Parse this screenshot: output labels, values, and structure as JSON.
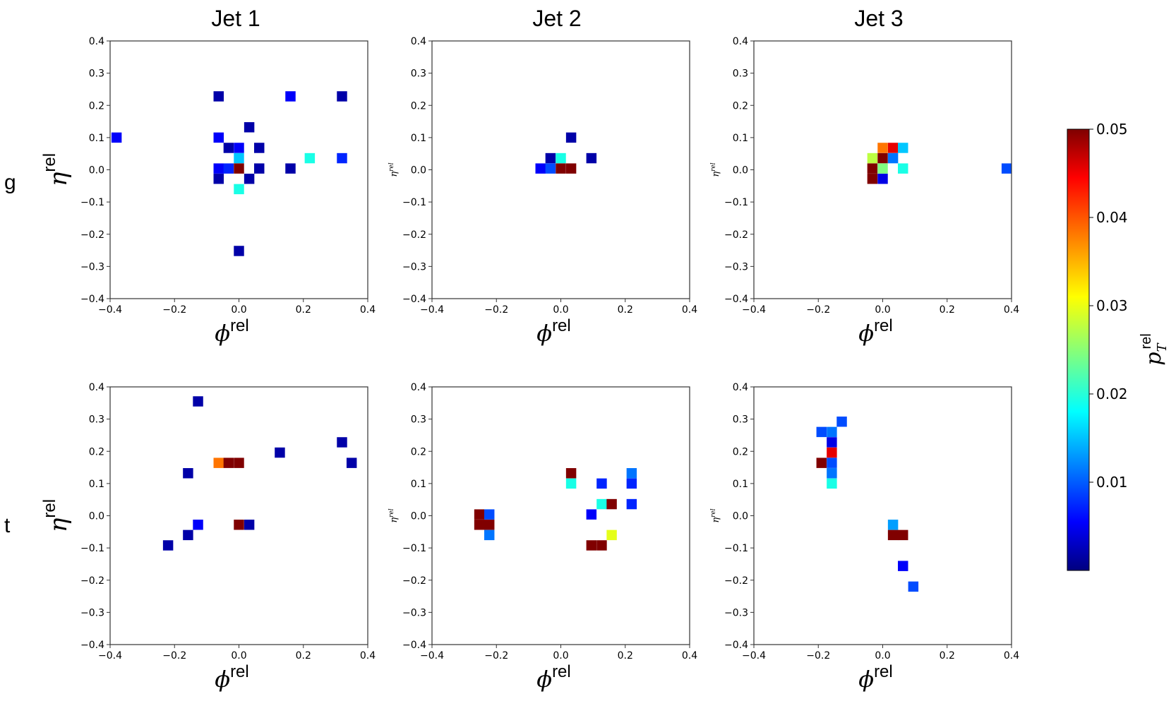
{
  "figure": {
    "column_titles": [
      "Jet 1",
      "Jet 2",
      "Jet 3"
    ],
    "row_labels": [
      "g",
      "t"
    ],
    "colorbar": {
      "label_main": "p",
      "label_sub": "T",
      "label_sup": "rel",
      "min": 0,
      "max": 0.05,
      "ticks": [
        0.01,
        0.02,
        0.03,
        0.04,
        0.05
      ],
      "tick_labels": [
        "0.01",
        "0.02",
        "0.03",
        "0.04",
        "0.05"
      ],
      "colormap": "jet"
    }
  },
  "chart_data": [
    {
      "type": "heatmap",
      "row": "g",
      "column": "Jet 1",
      "xlabel_main": "ϕ",
      "xlabel_sup": "rel",
      "ylabel_main": "η",
      "ylabel_sup": "rel",
      "ylabel_style": "large",
      "xlim": [
        -0.4,
        0.4
      ],
      "ylim": [
        -0.4,
        0.4
      ],
      "cell_size": 0.0317,
      "xticks": [
        -0.4,
        -0.2,
        0.0,
        0.2,
        0.4
      ],
      "xtick_labels": [
        "−0.4",
        "−0.2",
        "0.0",
        "0.2",
        "0.4"
      ],
      "yticks": [
        0.4,
        0.3,
        0.2,
        0.1,
        0.0,
        -0.1,
        -0.2,
        -0.3,
        -0.4
      ],
      "ytick_labels": [
        "0.4",
        "0.3",
        "0.2",
        "0.1",
        "0.0",
        "−0.1",
        "−0.2",
        "−0.3",
        "−0.4"
      ],
      "cells": [
        {
          "phi": -0.38,
          "eta": 0.1,
          "pt": 0.006
        },
        {
          "phi": -0.063,
          "eta": 0.228,
          "pt": 0.002
        },
        {
          "phi": 0.16,
          "eta": 0.228,
          "pt": 0.006
        },
        {
          "phi": 0.32,
          "eta": 0.228,
          "pt": 0.002
        },
        {
          "phi": 0.032,
          "eta": 0.132,
          "pt": 0.002
        },
        {
          "phi": -0.063,
          "eta": 0.1,
          "pt": 0.006
        },
        {
          "phi": -0.032,
          "eta": 0.068,
          "pt": 0.002
        },
        {
          "phi": 0.0,
          "eta": 0.068,
          "pt": 0.006
        },
        {
          "phi": 0.063,
          "eta": 0.068,
          "pt": 0.002
        },
        {
          "phi": 0.0,
          "eta": 0.036,
          "pt": 0.016
        },
        {
          "phi": 0.22,
          "eta": 0.036,
          "pt": 0.02
        },
        {
          "phi": 0.32,
          "eta": 0.036,
          "pt": 0.008
        },
        {
          "phi": -0.063,
          "eta": 0.004,
          "pt": 0.006
        },
        {
          "phi": -0.032,
          "eta": 0.004,
          "pt": 0.008
        },
        {
          "phi": 0.0,
          "eta": 0.004,
          "pt": 0.05
        },
        {
          "phi": 0.063,
          "eta": 0.004,
          "pt": 0.002
        },
        {
          "phi": 0.16,
          "eta": 0.004,
          "pt": 0.002
        },
        {
          "phi": -0.063,
          "eta": -0.028,
          "pt": 0.002
        },
        {
          "phi": 0.032,
          "eta": -0.028,
          "pt": 0.002
        },
        {
          "phi": 0.0,
          "eta": -0.06,
          "pt": 0.02
        },
        {
          "phi": 0.0,
          "eta": -0.252,
          "pt": 0.002
        }
      ]
    },
    {
      "type": "heatmap",
      "row": "g",
      "column": "Jet 2",
      "xlabel_main": "ϕ",
      "xlabel_sup": "rel",
      "ylabel_main": "η",
      "ylabel_sup": "rel",
      "ylabel_style": "small",
      "xlim": [
        -0.4,
        0.4
      ],
      "ylim": [
        -0.4,
        0.4
      ],
      "cell_size": 0.0317,
      "xticks": [
        -0.4,
        -0.2,
        0.0,
        0.2,
        0.4
      ],
      "xtick_labels": [
        "−0.4",
        "−0.2",
        "0.0",
        "0.2",
        "0.4"
      ],
      "yticks": [
        0.4,
        0.3,
        0.2,
        0.1,
        0.0,
        -0.1,
        -0.2,
        -0.3,
        -0.4
      ],
      "ytick_labels": [
        "0.4",
        "0.3",
        "0.2",
        "0.1",
        "0.0",
        "−0.1",
        "−0.2",
        "−0.3",
        "−0.4"
      ],
      "cells": [
        {
          "phi": 0.032,
          "eta": 0.1,
          "pt": 0.002
        },
        {
          "phi": -0.032,
          "eta": 0.036,
          "pt": 0.002
        },
        {
          "phi": 0.0,
          "eta": 0.036,
          "pt": 0.02
        },
        {
          "phi": 0.095,
          "eta": 0.036,
          "pt": 0.002
        },
        {
          "phi": -0.063,
          "eta": 0.004,
          "pt": 0.006
        },
        {
          "phi": -0.032,
          "eta": 0.004,
          "pt": 0.01
        },
        {
          "phi": 0.0,
          "eta": 0.004,
          "pt": 0.05
        },
        {
          "phi": 0.032,
          "eta": 0.004,
          "pt": 0.05
        }
      ]
    },
    {
      "type": "heatmap",
      "row": "g",
      "column": "Jet 3",
      "xlabel_main": "ϕ",
      "xlabel_sup": "rel",
      "ylabel_main": "η",
      "ylabel_sup": "rel",
      "ylabel_style": "small",
      "xlim": [
        -0.4,
        0.4
      ],
      "ylim": [
        -0.4,
        0.4
      ],
      "cell_size": 0.0317,
      "xticks": [
        -0.4,
        -0.2,
        0.0,
        0.2,
        0.4
      ],
      "xtick_labels": [
        "−0.4",
        "−0.2",
        "0.0",
        "0.2",
        "0.4"
      ],
      "yticks": [
        0.4,
        0.3,
        0.2,
        0.1,
        0.0,
        -0.1,
        -0.2,
        -0.3,
        -0.4
      ],
      "ytick_labels": [
        "0.4",
        "0.3",
        "0.2",
        "0.1",
        "0.0",
        "−0.1",
        "−0.2",
        "−0.3",
        "−0.4"
      ],
      "cells": [
        {
          "phi": 0.0,
          "eta": 0.068,
          "pt": 0.038
        },
        {
          "phi": 0.032,
          "eta": 0.068,
          "pt": 0.045
        },
        {
          "phi": 0.063,
          "eta": 0.068,
          "pt": 0.016
        },
        {
          "phi": -0.032,
          "eta": 0.036,
          "pt": 0.028
        },
        {
          "phi": 0.0,
          "eta": 0.036,
          "pt": 0.05
        },
        {
          "phi": 0.032,
          "eta": 0.036,
          "pt": 0.012
        },
        {
          "phi": -0.032,
          "eta": 0.004,
          "pt": 0.05
        },
        {
          "phi": 0.0,
          "eta": 0.004,
          "pt": 0.025
        },
        {
          "phi": 0.063,
          "eta": 0.004,
          "pt": 0.02
        },
        {
          "phi": 0.385,
          "eta": 0.004,
          "pt": 0.01
        },
        {
          "phi": -0.032,
          "eta": -0.028,
          "pt": 0.05
        },
        {
          "phi": 0.0,
          "eta": -0.028,
          "pt": 0.005
        }
      ]
    },
    {
      "type": "heatmap",
      "row": "t",
      "column": "Jet 1",
      "xlabel_main": "ϕ",
      "xlabel_sup": "rel",
      "ylabel_main": "η",
      "ylabel_sup": "rel",
      "ylabel_style": "large",
      "xlim": [
        -0.4,
        0.4
      ],
      "ylim": [
        -0.4,
        0.4
      ],
      "cell_size": 0.0317,
      "xticks": [
        -0.4,
        -0.2,
        0.0,
        0.2,
        0.4
      ],
      "xtick_labels": [
        "−0.4",
        "−0.2",
        "0.0",
        "0.2",
        "0.4"
      ],
      "yticks": [
        0.4,
        0.3,
        0.2,
        0.1,
        0.0,
        -0.1,
        -0.2,
        -0.3,
        -0.4
      ],
      "ytick_labels": [
        "0.4",
        "0.3",
        "0.2",
        "0.1",
        "0.0",
        "−0.1",
        "−0.2",
        "−0.3",
        "−0.4"
      ],
      "cells": [
        {
          "phi": -0.127,
          "eta": 0.355,
          "pt": 0.002
        },
        {
          "phi": 0.32,
          "eta": 0.228,
          "pt": 0.002
        },
        {
          "phi": 0.127,
          "eta": 0.196,
          "pt": 0.002
        },
        {
          "phi": -0.063,
          "eta": 0.164,
          "pt": 0.038
        },
        {
          "phi": -0.032,
          "eta": 0.164,
          "pt": 0.05
        },
        {
          "phi": 0.0,
          "eta": 0.164,
          "pt": 0.05
        },
        {
          "phi": 0.35,
          "eta": 0.164,
          "pt": 0.002
        },
        {
          "phi": -0.158,
          "eta": 0.132,
          "pt": 0.002
        },
        {
          "phi": 0.0,
          "eta": -0.028,
          "pt": 0.05
        },
        {
          "phi": 0.032,
          "eta": -0.028,
          "pt": 0.002
        },
        {
          "phi": -0.127,
          "eta": -0.028,
          "pt": 0.006
        },
        {
          "phi": -0.158,
          "eta": -0.06,
          "pt": 0.002
        },
        {
          "phi": -0.22,
          "eta": -0.092,
          "pt": 0.002
        }
      ]
    },
    {
      "type": "heatmap",
      "row": "t",
      "column": "Jet 2",
      "xlabel_main": "ϕ",
      "xlabel_sup": "rel",
      "ylabel_main": "η",
      "ylabel_sup": "rel",
      "ylabel_style": "small",
      "xlim": [
        -0.4,
        0.4
      ],
      "ylim": [
        -0.4,
        0.4
      ],
      "cell_size": 0.0317,
      "xticks": [
        -0.4,
        -0.2,
        0.0,
        0.2,
        0.4
      ],
      "xtick_labels": [
        "−0.4",
        "−0.2",
        "0.0",
        "0.2",
        "0.4"
      ],
      "yticks": [
        0.4,
        0.3,
        0.2,
        0.1,
        0.0,
        -0.1,
        -0.2,
        -0.3,
        -0.4
      ],
      "ytick_labels": [
        "0.4",
        "0.3",
        "0.2",
        "0.1",
        "0.0",
        "−0.1",
        "−0.2",
        "−0.3",
        "−0.4"
      ],
      "cells": [
        {
          "phi": 0.032,
          "eta": 0.132,
          "pt": 0.05
        },
        {
          "phi": 0.22,
          "eta": 0.132,
          "pt": 0.012
        },
        {
          "phi": 0.032,
          "eta": 0.1,
          "pt": 0.02
        },
        {
          "phi": 0.127,
          "eta": 0.1,
          "pt": 0.008
        },
        {
          "phi": 0.22,
          "eta": 0.1,
          "pt": 0.008
        },
        {
          "phi": 0.127,
          "eta": 0.036,
          "pt": 0.02
        },
        {
          "phi": 0.158,
          "eta": 0.036,
          "pt": 0.05
        },
        {
          "phi": 0.22,
          "eta": 0.036,
          "pt": 0.008
        },
        {
          "phi": -0.253,
          "eta": 0.004,
          "pt": 0.05
        },
        {
          "phi": -0.222,
          "eta": 0.004,
          "pt": 0.01
        },
        {
          "phi": 0.095,
          "eta": 0.004,
          "pt": 0.006
        },
        {
          "phi": -0.253,
          "eta": -0.028,
          "pt": 0.05
        },
        {
          "phi": -0.222,
          "eta": -0.028,
          "pt": 0.05
        },
        {
          "phi": -0.222,
          "eta": -0.06,
          "pt": 0.012
        },
        {
          "phi": 0.158,
          "eta": -0.06,
          "pt": 0.03
        },
        {
          "phi": 0.095,
          "eta": -0.092,
          "pt": 0.05
        },
        {
          "phi": 0.127,
          "eta": -0.092,
          "pt": 0.05
        }
      ]
    },
    {
      "type": "heatmap",
      "row": "t",
      "column": "Jet 3",
      "xlabel_main": "ϕ",
      "xlabel_sup": "rel",
      "ylabel_main": "η",
      "ylabel_sup": "rel",
      "ylabel_style": "small",
      "xlim": [
        -0.4,
        0.4
      ],
      "ylim": [
        -0.4,
        0.4
      ],
      "cell_size": 0.0317,
      "xticks": [
        -0.4,
        -0.2,
        0.0,
        0.2,
        0.4
      ],
      "xtick_labels": [
        "−0.4",
        "−0.2",
        "0.0",
        "0.2",
        "0.4"
      ],
      "yticks": [
        0.4,
        0.3,
        0.2,
        0.1,
        0.0,
        -0.1,
        -0.2,
        -0.3,
        -0.4
      ],
      "ytick_labels": [
        "0.4",
        "0.3",
        "0.2",
        "0.1",
        "0.0",
        "−0.1",
        "−0.2",
        "−0.3",
        "−0.4"
      ],
      "cells": [
        {
          "phi": -0.127,
          "eta": 0.292,
          "pt": 0.01
        },
        {
          "phi": -0.19,
          "eta": 0.26,
          "pt": 0.01
        },
        {
          "phi": -0.158,
          "eta": 0.26,
          "pt": 0.012
        },
        {
          "phi": -0.158,
          "eta": 0.228,
          "pt": 0.005
        },
        {
          "phi": -0.158,
          "eta": 0.196,
          "pt": 0.045
        },
        {
          "phi": -0.19,
          "eta": 0.164,
          "pt": 0.05
        },
        {
          "phi": -0.158,
          "eta": 0.164,
          "pt": 0.01
        },
        {
          "phi": -0.158,
          "eta": 0.132,
          "pt": 0.012
        },
        {
          "phi": -0.158,
          "eta": 0.1,
          "pt": 0.02
        },
        {
          "phi": 0.032,
          "eta": -0.028,
          "pt": 0.014
        },
        {
          "phi": 0.032,
          "eta": -0.06,
          "pt": 0.05
        },
        {
          "phi": 0.063,
          "eta": -0.06,
          "pt": 0.05
        },
        {
          "phi": 0.063,
          "eta": -0.156,
          "pt": 0.006
        },
        {
          "phi": 0.095,
          "eta": -0.22,
          "pt": 0.01
        }
      ]
    }
  ]
}
